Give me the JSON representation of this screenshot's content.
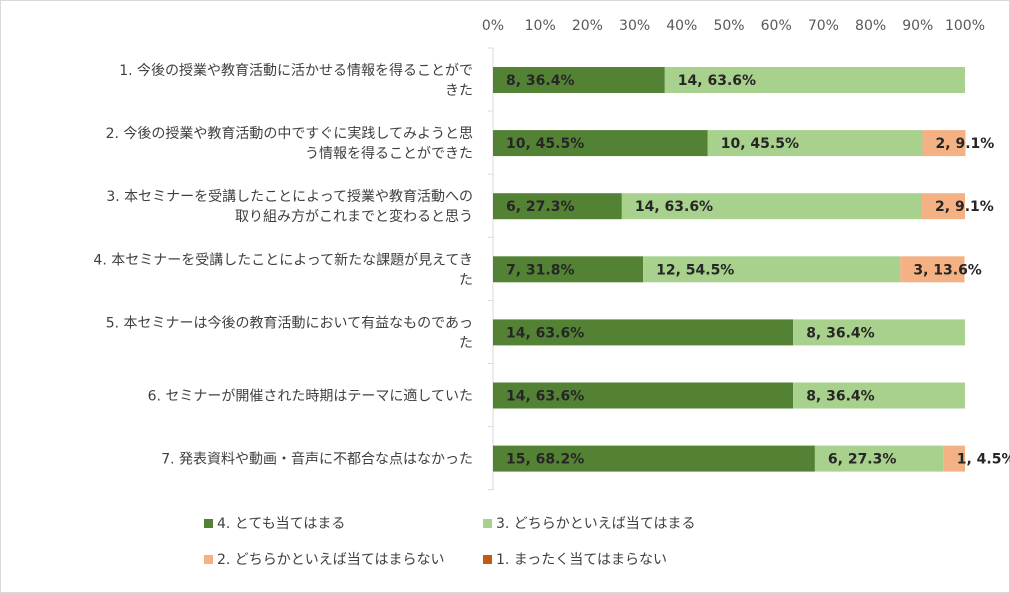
{
  "chart_data": {
    "type": "bar",
    "orientation": "horizontal",
    "stacked": "percent",
    "categories": [
      [
        "1. 今後の授業や教育活動に活かせる情報を得ることがで",
        "きた"
      ],
      [
        "2. 今後の授業や教育活動の中ですぐに実践してみようと思",
        "う情報を得ることができた"
      ],
      [
        "3. 本セミナーを受講したことによって授業や教育活動への",
        "取り組み方がこれまでと変わると思う"
      ],
      [
        "4. 本セミナーを受講したことによって新たな課題が見えてき",
        "た"
      ],
      [
        "5. 本セミナーは今後の教育活動において有益なものであっ",
        "た"
      ],
      [
        "6. セミナーが開催された時期はテーマに適していた"
      ],
      [
        "7. 発表資料や動画・音声に不都合な点はなかった"
      ]
    ],
    "series": [
      {
        "name": "4. とても当てはまる",
        "color": "#548235",
        "values": [
          8,
          10,
          6,
          7,
          14,
          14,
          15
        ],
        "percents": [
          36.4,
          45.5,
          27.3,
          31.8,
          63.6,
          63.6,
          68.2
        ],
        "labels": [
          "8, 36.4%",
          "10, 45.5%",
          "6, 27.3%",
          "7, 31.8%",
          "14, 63.6%",
          "14, 63.6%",
          "15, 68.2%"
        ]
      },
      {
        "name": "3. どちらかといえば当てはまる",
        "color": "#a9d18e",
        "values": [
          14,
          10,
          14,
          12,
          8,
          8,
          6
        ],
        "percents": [
          63.6,
          45.5,
          63.6,
          54.5,
          36.4,
          36.4,
          27.3
        ],
        "labels": [
          "14, 63.6%",
          "10, 45.5%",
          "14, 63.6%",
          "12, 54.5%",
          "8, 36.4%",
          "8, 36.4%",
          "6, 27.3%"
        ]
      },
      {
        "name": "2. どちらかといえば当てはまらない",
        "color": "#f4b183",
        "values": [
          0,
          2,
          2,
          3,
          0,
          0,
          1
        ],
        "percents": [
          0,
          9.1,
          9.1,
          13.6,
          0,
          0,
          4.5
        ],
        "labels": [
          "",
          "2, 9.1%",
          "2, 9.1%",
          "3, 13.6%",
          "",
          "",
          "1, 4.5%"
        ]
      },
      {
        "name": "1. まったく当てはまらない",
        "color": "#c55a11",
        "values": [
          0,
          0,
          0,
          0,
          0,
          0,
          0
        ],
        "percents": [
          0,
          0,
          0,
          0,
          0,
          0,
          0
        ],
        "labels": [
          "",
          "",
          "",
          "",
          "",
          "",
          ""
        ]
      }
    ],
    "x_ticks": [
      "0%",
      "10%",
      "20%",
      "30%",
      "40%",
      "50%",
      "60%",
      "70%",
      "80%",
      "90%",
      "100%"
    ],
    "xlim": [
      0,
      100
    ],
    "axis_position": "top",
    "gridlines": false,
    "legend_position": "bottom"
  }
}
